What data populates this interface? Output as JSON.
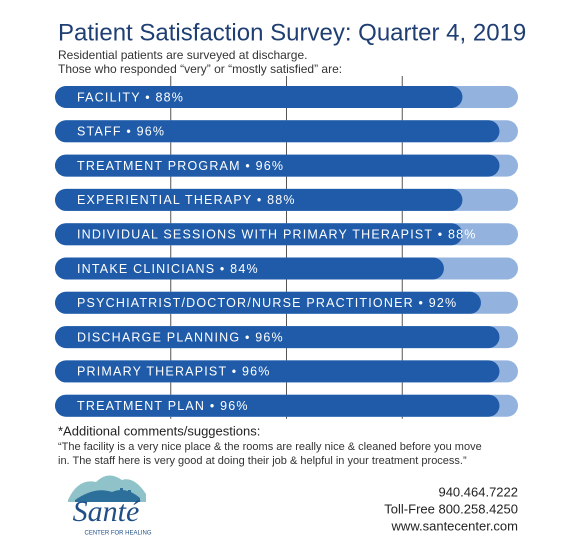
{
  "chart_data": {
    "type": "bar",
    "orientation": "horizontal",
    "title": "Patient Satisfaction Survey: Quarter 4, 2019",
    "subtitle_lines": [
      "Residential patients are surveyed at discharge.",
      "Those who responded “very” or “mostly satisfied” are:"
    ],
    "categories": [
      "FACILITY • 88%",
      "STAFF • 96%",
      "TREATMENT PROGRAM • 96%",
      "EXPERIENTIAL THERAPY • 88%",
      "INDIVIDUAL SESSIONS WITH PRIMARY THERAPIST • 88%",
      "INTAKE CLINICIANS • 84%",
      "PSYCHIATRIST/DOCTOR/NURSE PRACTITIONER • 92%",
      "DISCHARGE PLANNING • 96%",
      "PRIMARY THERAPIST • 96%",
      "TREATMENT PLAN • 96%"
    ],
    "values": [
      88,
      96,
      96,
      88,
      88,
      84,
      92,
      96,
      96,
      96
    ],
    "color": "#1f5ba8",
    "track_color": "#93b3de",
    "xlim": [
      0,
      100
    ],
    "xticks": [
      25,
      50,
      75
    ],
    "comment_title": "*Additional comments/suggestions:",
    "comment_lines": [
      "“The facility is a very nice place & the rooms are really nice & cleaned before you move",
      "in. The staff here is very good at doing their job & helpful in your treatment process.”"
    ],
    "logo_name": "Santé",
    "logo_tagline": "CENTER FOR HEALING",
    "contact_lines": [
      "940.464.7222",
      "Toll-Free 800.258.4250",
      "www.santecenter.com"
    ]
  }
}
